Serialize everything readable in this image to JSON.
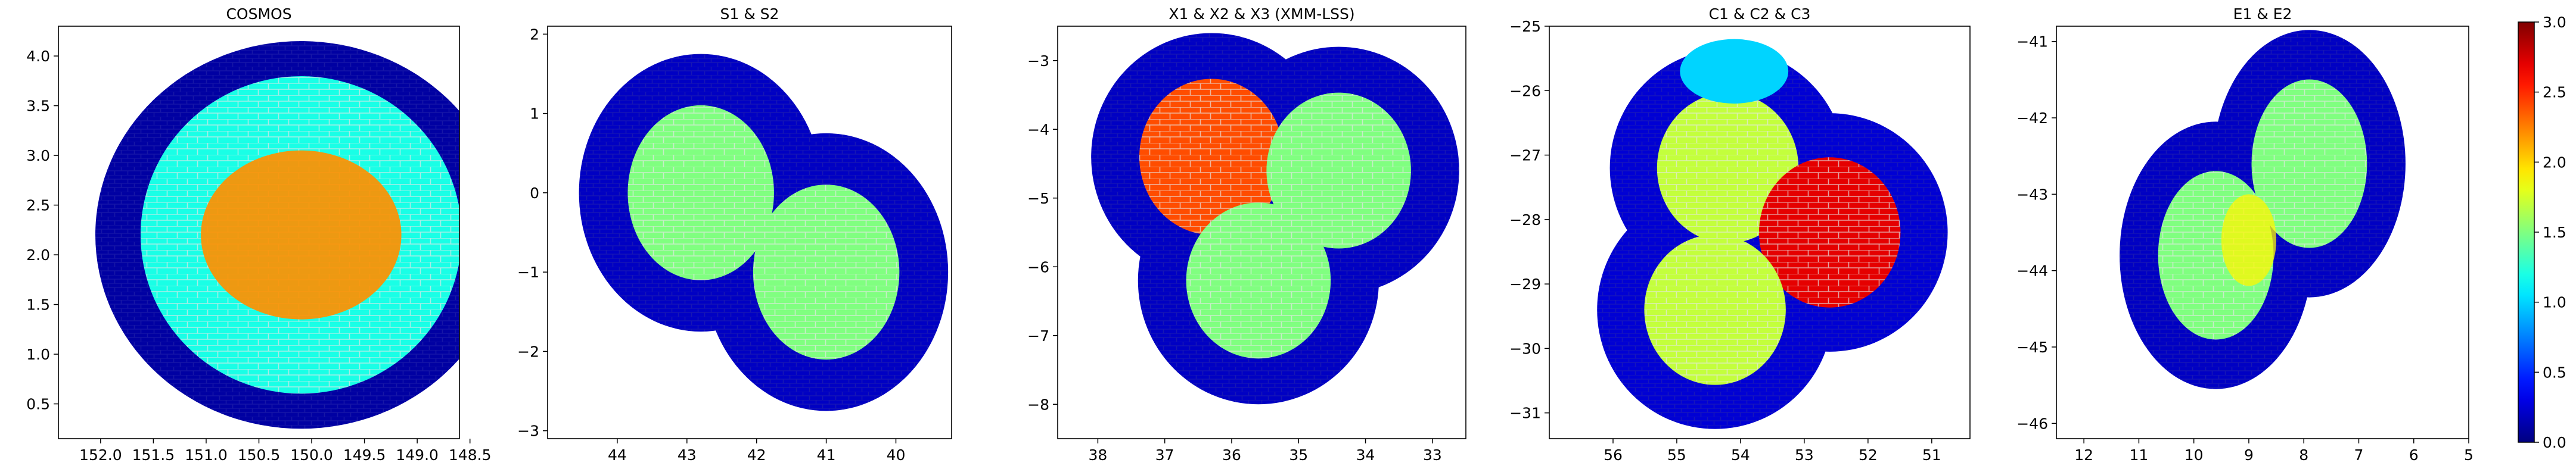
{
  "colorbar": {
    "colormap": "jet",
    "range": [
      0.0,
      3.0
    ],
    "ticks": [
      "0.0",
      "0.5",
      "1.0",
      "1.5",
      "2.0",
      "2.5",
      "3.0"
    ]
  },
  "chart_data": [
    {
      "type": "heatmap",
      "title": "COSMOS",
      "xlim": [
        152.4,
        148.6
      ],
      "ylim": [
        0.15,
        4.3
      ],
      "x_ticks": [
        "152.0",
        "151.5",
        "151.0",
        "150.5",
        "150.0",
        "149.5",
        "149.0",
        "148.5"
      ],
      "y_ticks": [
        "0.5",
        "1.0",
        "1.5",
        "2.0",
        "2.5",
        "3.0",
        "3.5",
        "4.0"
      ],
      "footprint_center": [
        150.1,
        2.2
      ],
      "footprint_radius_deg": 1.95,
      "regions": [
        {
          "description": "tiled field",
          "value": 1.2
        },
        {
          "description": "deep central core",
          "value": 2.2
        },
        {
          "description": "background",
          "value": 0.1
        }
      ]
    },
    {
      "type": "heatmap",
      "title": "S1 & S2",
      "xlim": [
        45.0,
        39.2
      ],
      "ylim": [
        -3.1,
        2.1
      ],
      "x_ticks": [
        "44",
        "43",
        "42",
        "41",
        "40"
      ],
      "y_ticks": [
        "−3",
        "−2",
        "−1",
        "0",
        "1",
        "2"
      ],
      "footprints": [
        {
          "center": [
            42.8,
            0.0
          ],
          "radius_deg": 1.75
        },
        {
          "center": [
            41.0,
            -1.0
          ],
          "radius_deg": 1.75
        }
      ],
      "regions": [
        {
          "description": "tiled fields",
          "value": 1.5
        },
        {
          "description": "background",
          "value": 0.2
        }
      ]
    },
    {
      "type": "heatmap",
      "title": "X1 & X2 & X3 (XMM-LSS)",
      "xlim": [
        38.6,
        32.5
      ],
      "ylim": [
        -8.5,
        -2.5
      ],
      "x_ticks": [
        "38",
        "37",
        "36",
        "35",
        "34",
        "33"
      ],
      "y_ticks": [
        "−8",
        "−7",
        "−6",
        "−5",
        "−4",
        "−3"
      ],
      "footprints": [
        {
          "center": [
            36.3,
            -4.4
          ],
          "radius_deg": 1.8
        },
        {
          "center": [
            34.4,
            -4.6
          ],
          "radius_deg": 1.8
        },
        {
          "center": [
            35.6,
            -6.2
          ],
          "radius_deg": 1.8
        }
      ],
      "regions": [
        {
          "description": "X1 tiles",
          "value": 2.4
        },
        {
          "description": "X2 tiles",
          "value": 1.5
        },
        {
          "description": "X3 tiles",
          "value": 1.5
        },
        {
          "description": "background",
          "value": 0.2
        }
      ]
    },
    {
      "type": "heatmap",
      "title": "C1 & C2 & C3",
      "xlim": [
        57.0,
        50.4
      ],
      "ylim": [
        -31.4,
        -25.0
      ],
      "x_ticks": [
        "56",
        "55",
        "54",
        "53",
        "52",
        "51"
      ],
      "y_ticks": [
        "−31",
        "−30",
        "−29",
        "−28",
        "−27",
        "−26",
        "−25"
      ],
      "footprints": [
        {
          "center": [
            54.2,
            -27.2
          ],
          "radius_deg": 1.85
        },
        {
          "center": [
            52.6,
            -28.2
          ],
          "radius_deg": 1.85
        },
        {
          "center": [
            54.4,
            -29.4
          ],
          "radius_deg": 1.85
        }
      ],
      "regions": [
        {
          "description": "C1 tiles",
          "value": 1.7
        },
        {
          "description": "C2 tiles",
          "value": 2.7
        },
        {
          "description": "C3 tiles",
          "value": 1.7
        },
        {
          "description": "northern patch",
          "value": 1.0
        },
        {
          "description": "background",
          "value": 0.25
        }
      ]
    },
    {
      "type": "heatmap",
      "title": "E1 & E2",
      "xlim": [
        12.5,
        5.0
      ],
      "ylim": [
        -46.2,
        -40.8
      ],
      "x_ticks": [
        "12",
        "11",
        "10",
        "9",
        "8",
        "7",
        "6",
        "5"
      ],
      "y_ticks": [
        "−46",
        "−45",
        "−44",
        "−43",
        "−42",
        "−41"
      ],
      "footprints": [
        {
          "center": [
            9.6,
            -43.8
          ],
          "radius_deg": 1.75
        },
        {
          "center": [
            7.9,
            -42.6
          ],
          "radius_deg": 1.75
        }
      ],
      "regions": [
        {
          "description": "E1 tiles",
          "value": 1.5
        },
        {
          "description": "E2 tiles",
          "value": 1.5
        },
        {
          "description": "overlap",
          "value": 1.9
        },
        {
          "description": "background",
          "value": 0.2
        }
      ]
    }
  ]
}
